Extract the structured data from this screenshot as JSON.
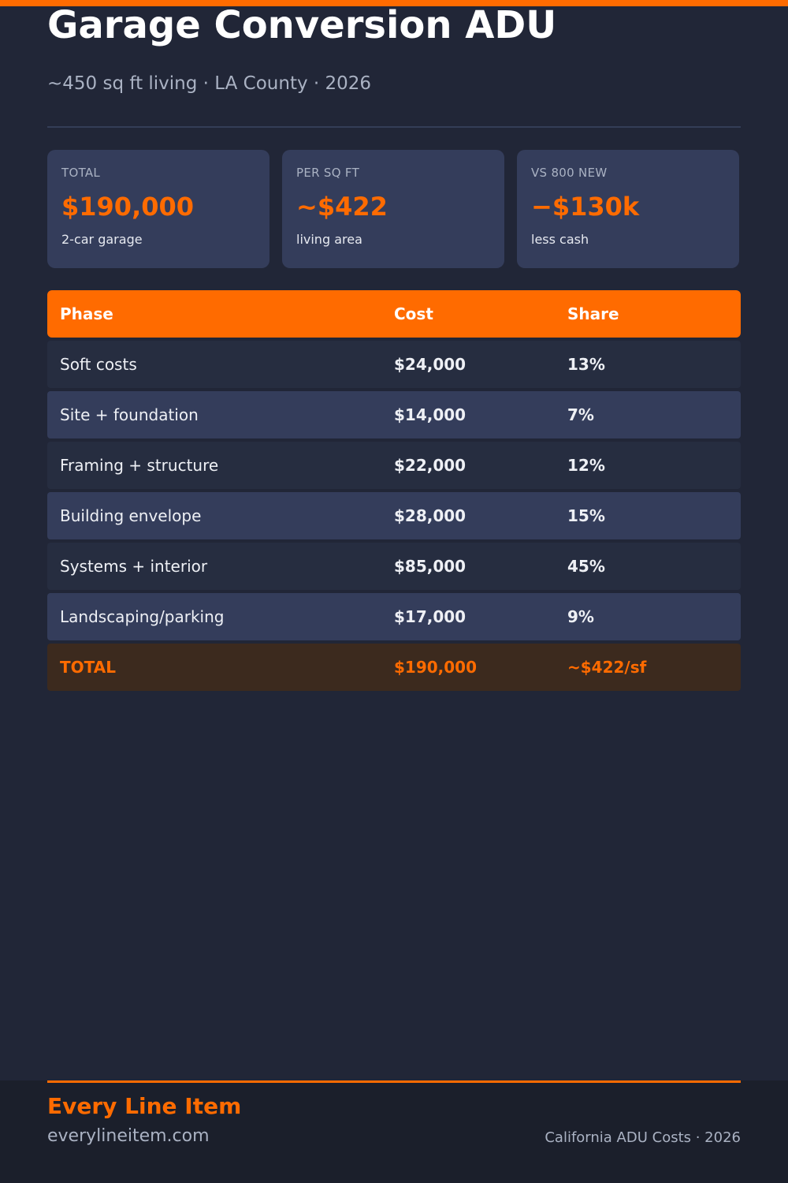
{
  "header": {
    "title": "Garage Conversion ADU",
    "subtitle": "~450 sq ft living · LA County · 2026"
  },
  "stats": [
    {
      "label": "TOTAL",
      "value": "$190,000",
      "note": "2-car garage"
    },
    {
      "label": "PER SQ FT",
      "value": "~$422",
      "note": "living area"
    },
    {
      "label": "VS 800 NEW",
      "value": "−$130k",
      "note": "less cash"
    }
  ],
  "table": {
    "columns": [
      "Phase",
      "Cost",
      "Share"
    ],
    "rows": [
      {
        "phase": "Soft costs",
        "cost": "$24,000",
        "share": "13%"
      },
      {
        "phase": "Site + foundation",
        "cost": "$14,000",
        "share": "7%"
      },
      {
        "phase": "Framing + structure",
        "cost": "$22,000",
        "share": "12%"
      },
      {
        "phase": "Building envelope",
        "cost": "$28,000",
        "share": "15%"
      },
      {
        "phase": "Systems + interior",
        "cost": "$85,000",
        "share": "45%"
      },
      {
        "phase": "Landscaping/parking",
        "cost": "$17,000",
        "share": "9%"
      }
    ],
    "total": {
      "phase": "TOTAL",
      "cost": "$190,000",
      "share": "~$422/sf"
    }
  },
  "footer": {
    "brand": "Every Line Item",
    "site": "everylineitem.com",
    "series": "California ADU Costs · 2026"
  },
  "colors": {
    "accent": "#ff6b00",
    "background": "#212637",
    "card": "#343d5b"
  }
}
